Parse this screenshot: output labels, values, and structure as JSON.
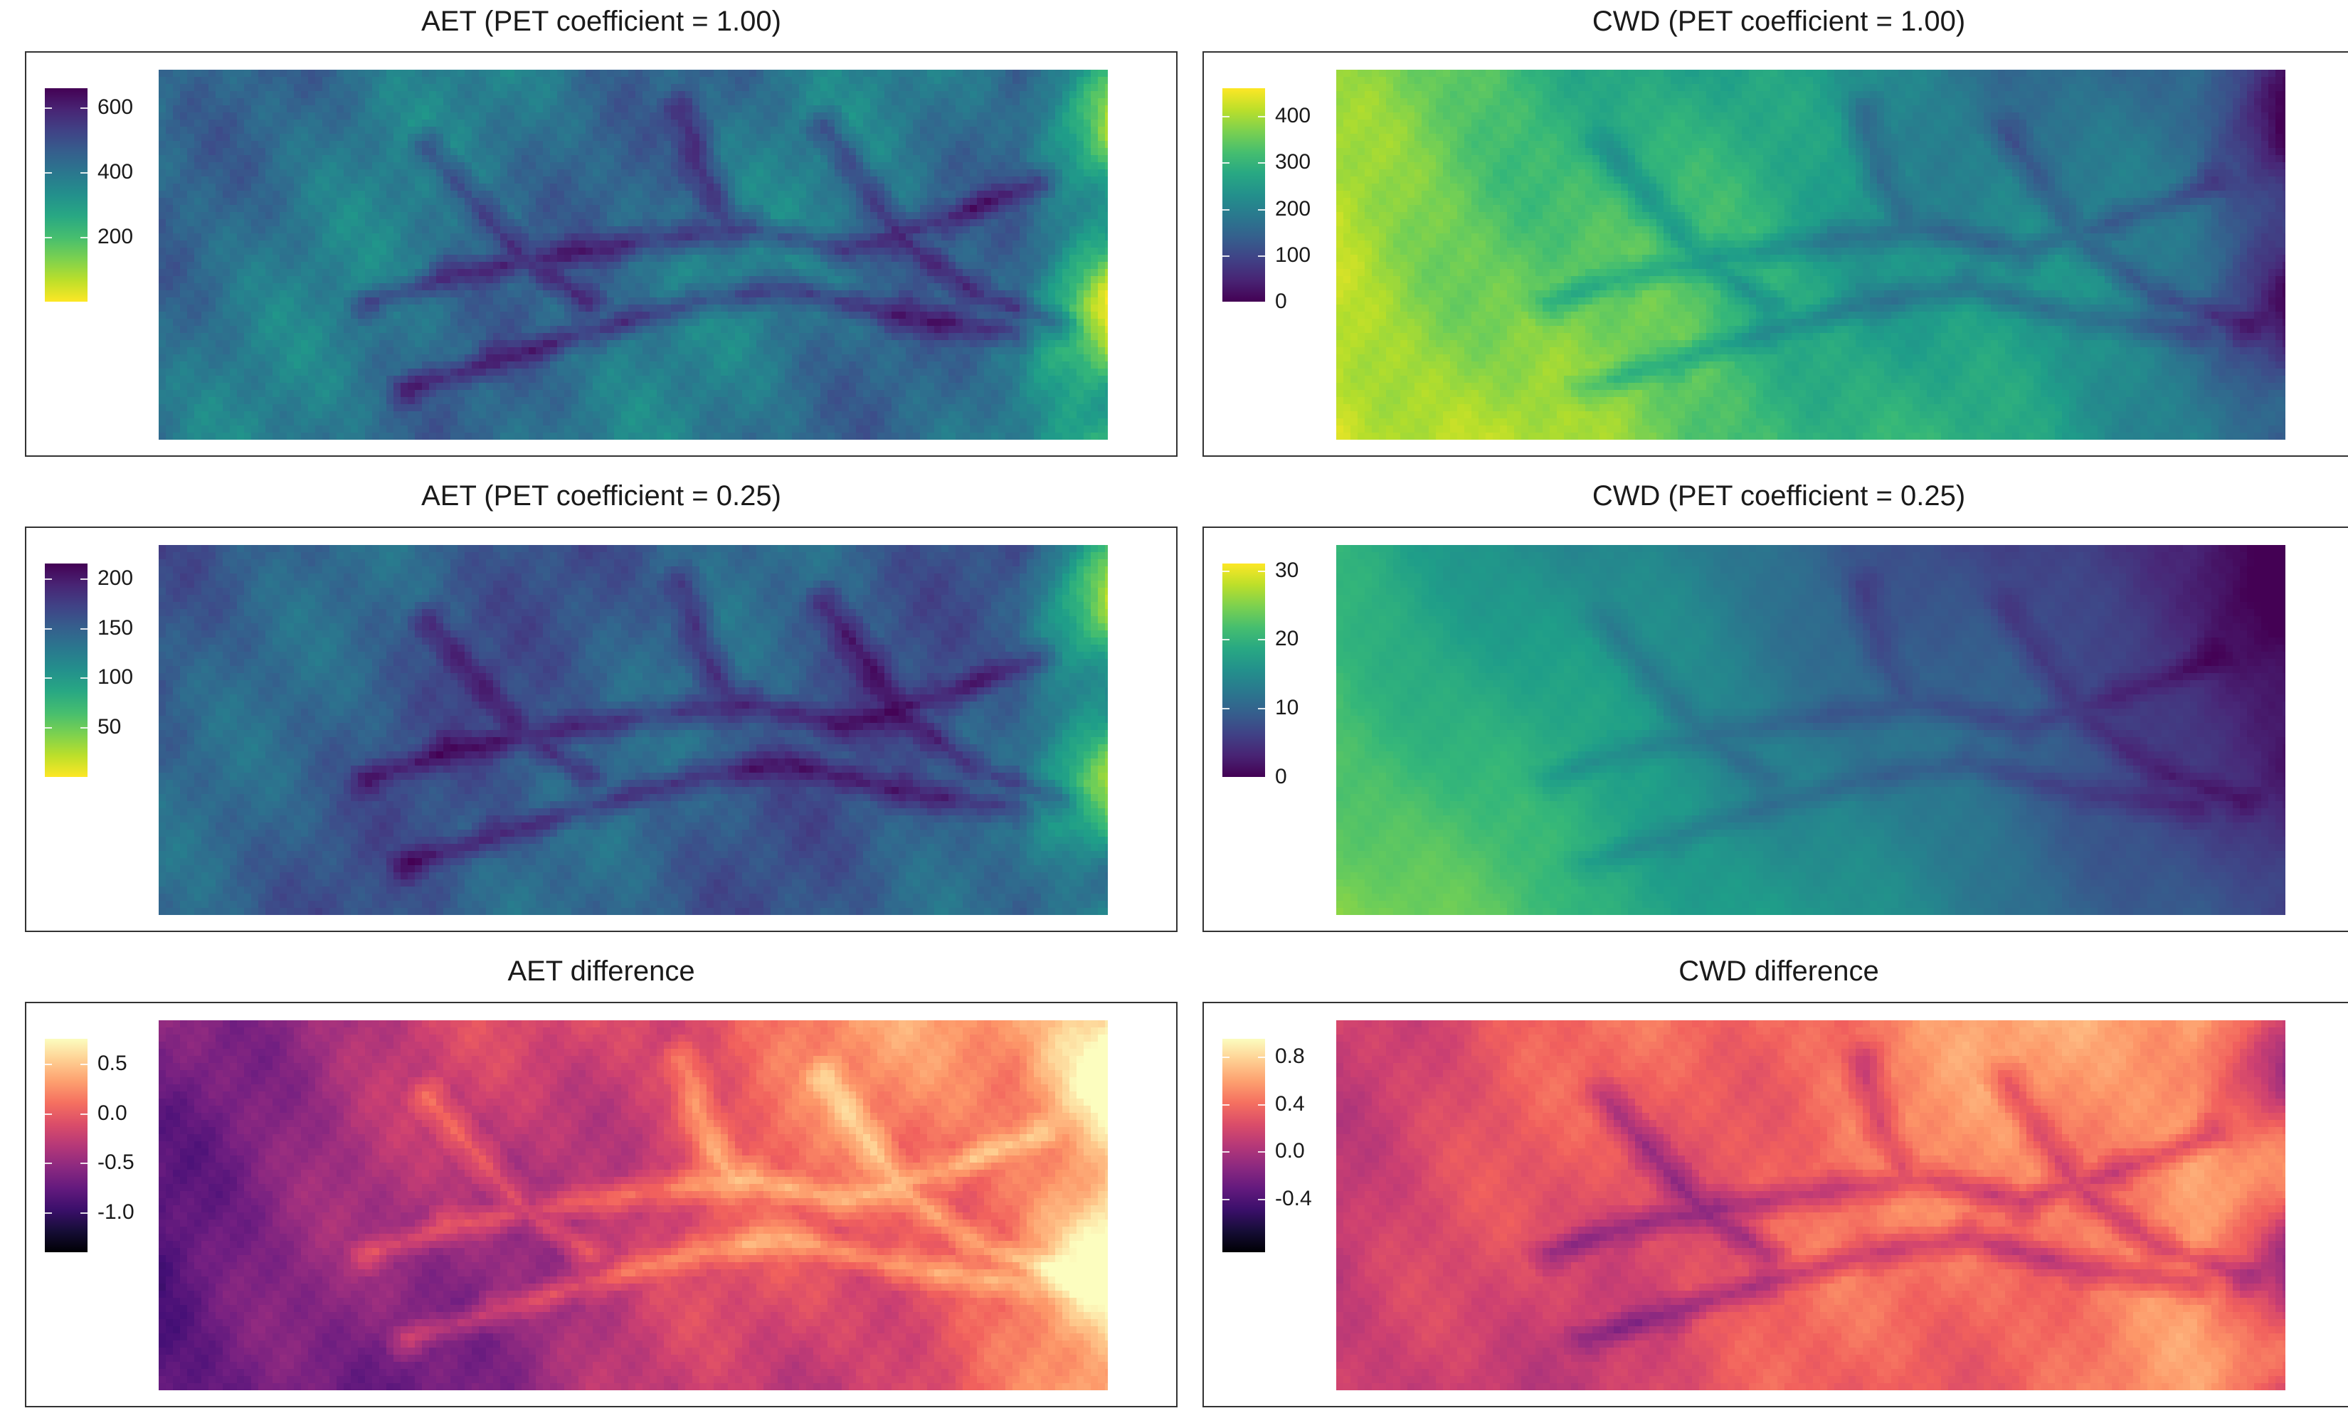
{
  "chart_data": [
    {
      "type": "heatmap",
      "id": "aet1",
      "title": "AET (PET coefficient = 1.00)",
      "colormap": "viridis",
      "reverse": true,
      "legend": {
        "min": 0,
        "max": 660,
        "ticks": [
          200,
          400,
          600
        ],
        "labels": [
          "200",
          "400",
          "600"
        ]
      },
      "field": {
        "base": 0.62,
        "west_east": 0.0,
        "east_edge": -0.55,
        "ridges": 0.35,
        "channels": 0.45
      }
    },
    {
      "type": "heatmap",
      "id": "cwd1",
      "title": "CWD (PET coefficient = 1.00)",
      "colormap": "viridis",
      "reverse": false,
      "legend": {
        "min": 0,
        "max": 460,
        "ticks": [
          0,
          100,
          200,
          300,
          400
        ],
        "labels": [
          "0",
          "100",
          "200",
          "300",
          "400"
        ]
      },
      "field": {
        "base": 0.6,
        "west_east": -0.7,
        "east_edge": -0.3,
        "ridges": 0.2,
        "channels": -0.3
      }
    },
    {
      "type": "heatmap",
      "id": "aet2",
      "title": "AET (PET coefficient = 0.25)",
      "colormap": "viridis",
      "reverse": true,
      "legend": {
        "min": 0,
        "max": 215,
        "ticks": [
          50,
          100,
          150,
          200
        ],
        "labels": [
          "50",
          "100",
          "150",
          "200"
        ]
      },
      "field": {
        "base": 0.7,
        "west_east": 0.0,
        "east_edge": -0.55,
        "ridges": 0.3,
        "channels": 0.4
      }
    },
    {
      "type": "heatmap",
      "id": "cwd2",
      "title": "CWD (PET coefficient = 0.25)",
      "colormap": "viridis",
      "reverse": false,
      "legend": {
        "min": 0,
        "max": 31,
        "ticks": [
          0,
          10,
          20,
          30
        ],
        "labels": [
          "0",
          "10",
          "20",
          "30"
        ]
      },
      "field": {
        "base": 0.42,
        "west_east": -0.75,
        "east_edge": -0.1,
        "ridges": 0.12,
        "channels": -0.2
      }
    },
    {
      "type": "heatmap",
      "id": "aetd",
      "title": "AET difference",
      "colormap": "magma",
      "reverse": false,
      "legend": {
        "min": -1.4,
        "max": 0.75,
        "ticks": [
          -1.0,
          -0.5,
          0.0,
          0.5
        ],
        "labels": [
          "-1.0",
          "-0.5",
          "0.0",
          "0.5"
        ]
      },
      "field": {
        "base": 0.55,
        "west_east": 0.6,
        "east_edge": 0.3,
        "ridges": 0.25,
        "channels": 0.35
      }
    },
    {
      "type": "heatmap",
      "id": "cwdd",
      "title": "CWD difference",
      "colormap": "magma",
      "reverse": false,
      "legend": {
        "min": -0.85,
        "max": 0.95,
        "ticks": [
          -0.4,
          0.0,
          0.4,
          0.8
        ],
        "labels": [
          "-0.4",
          "0.0",
          "0.4",
          "0.8"
        ]
      },
      "field": {
        "base": 0.68,
        "west_east": 0.35,
        "east_edge": -0.45,
        "ridges": 0.2,
        "channels": -0.35
      }
    }
  ]
}
